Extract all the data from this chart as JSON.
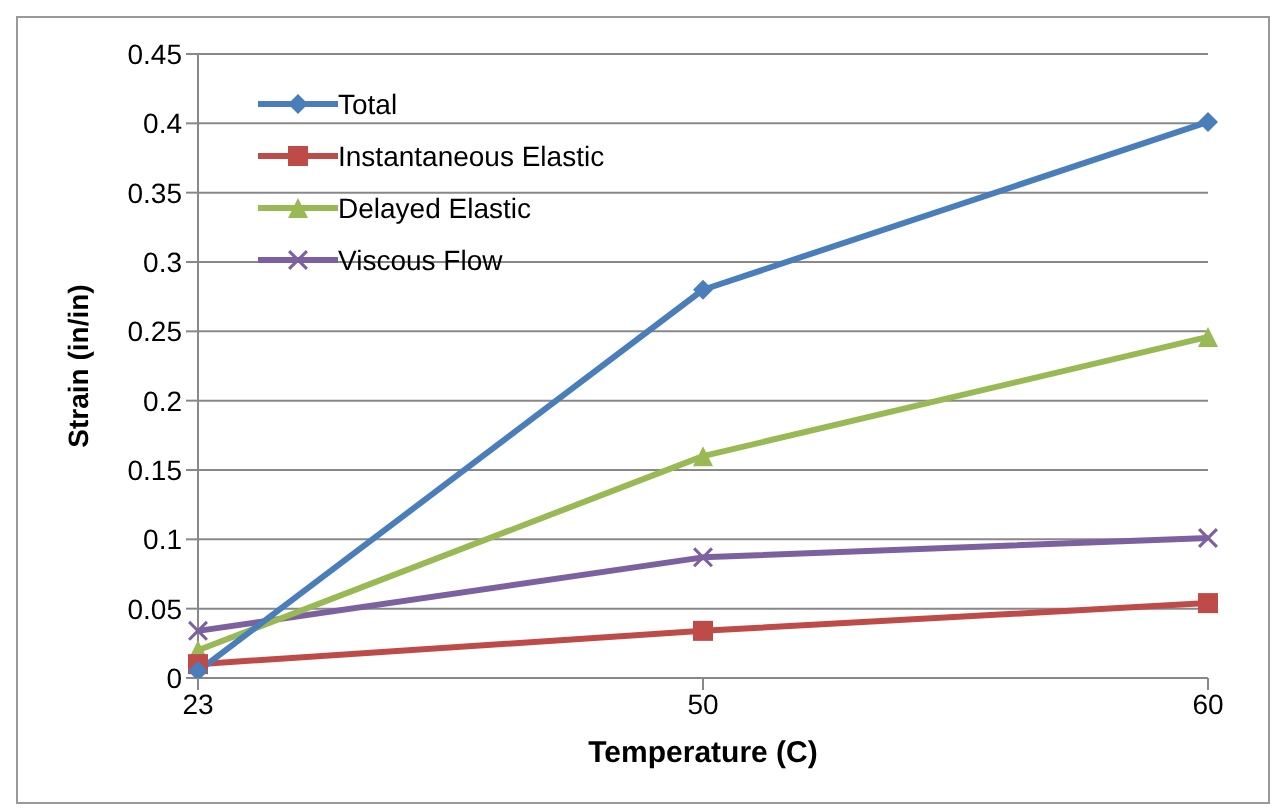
{
  "chart_data": {
    "type": "line",
    "xlabel": "Temperature (C)",
    "ylabel": "Strain  (in/in)",
    "categories": [
      "23",
      "50",
      "60"
    ],
    "series": [
      {
        "name": "Total",
        "color": "#4a7ebb",
        "marker": "diamond",
        "values": [
          0.005,
          0.28,
          0.401
        ]
      },
      {
        "name": "Instantaneous Elastic",
        "color": "#be4b48",
        "marker": "square",
        "values": [
          0.01,
          0.034,
          0.054
        ]
      },
      {
        "name": "Delayed Elastic",
        "color": "#98b954",
        "marker": "triangle",
        "values": [
          0.02,
          0.16,
          0.246
        ]
      },
      {
        "name": "Viscous Flow",
        "color": "#7d60a0",
        "marker": "cross",
        "values": [
          0.034,
          0.087,
          0.101
        ]
      }
    ],
    "ylim": [
      0,
      0.45
    ],
    "yticks": [
      0,
      0.05,
      0.1,
      0.15,
      0.2,
      0.25,
      0.3,
      0.35,
      0.4,
      0.45
    ],
    "grid": "y",
    "legend": "top left",
    "line_style": "solid"
  }
}
